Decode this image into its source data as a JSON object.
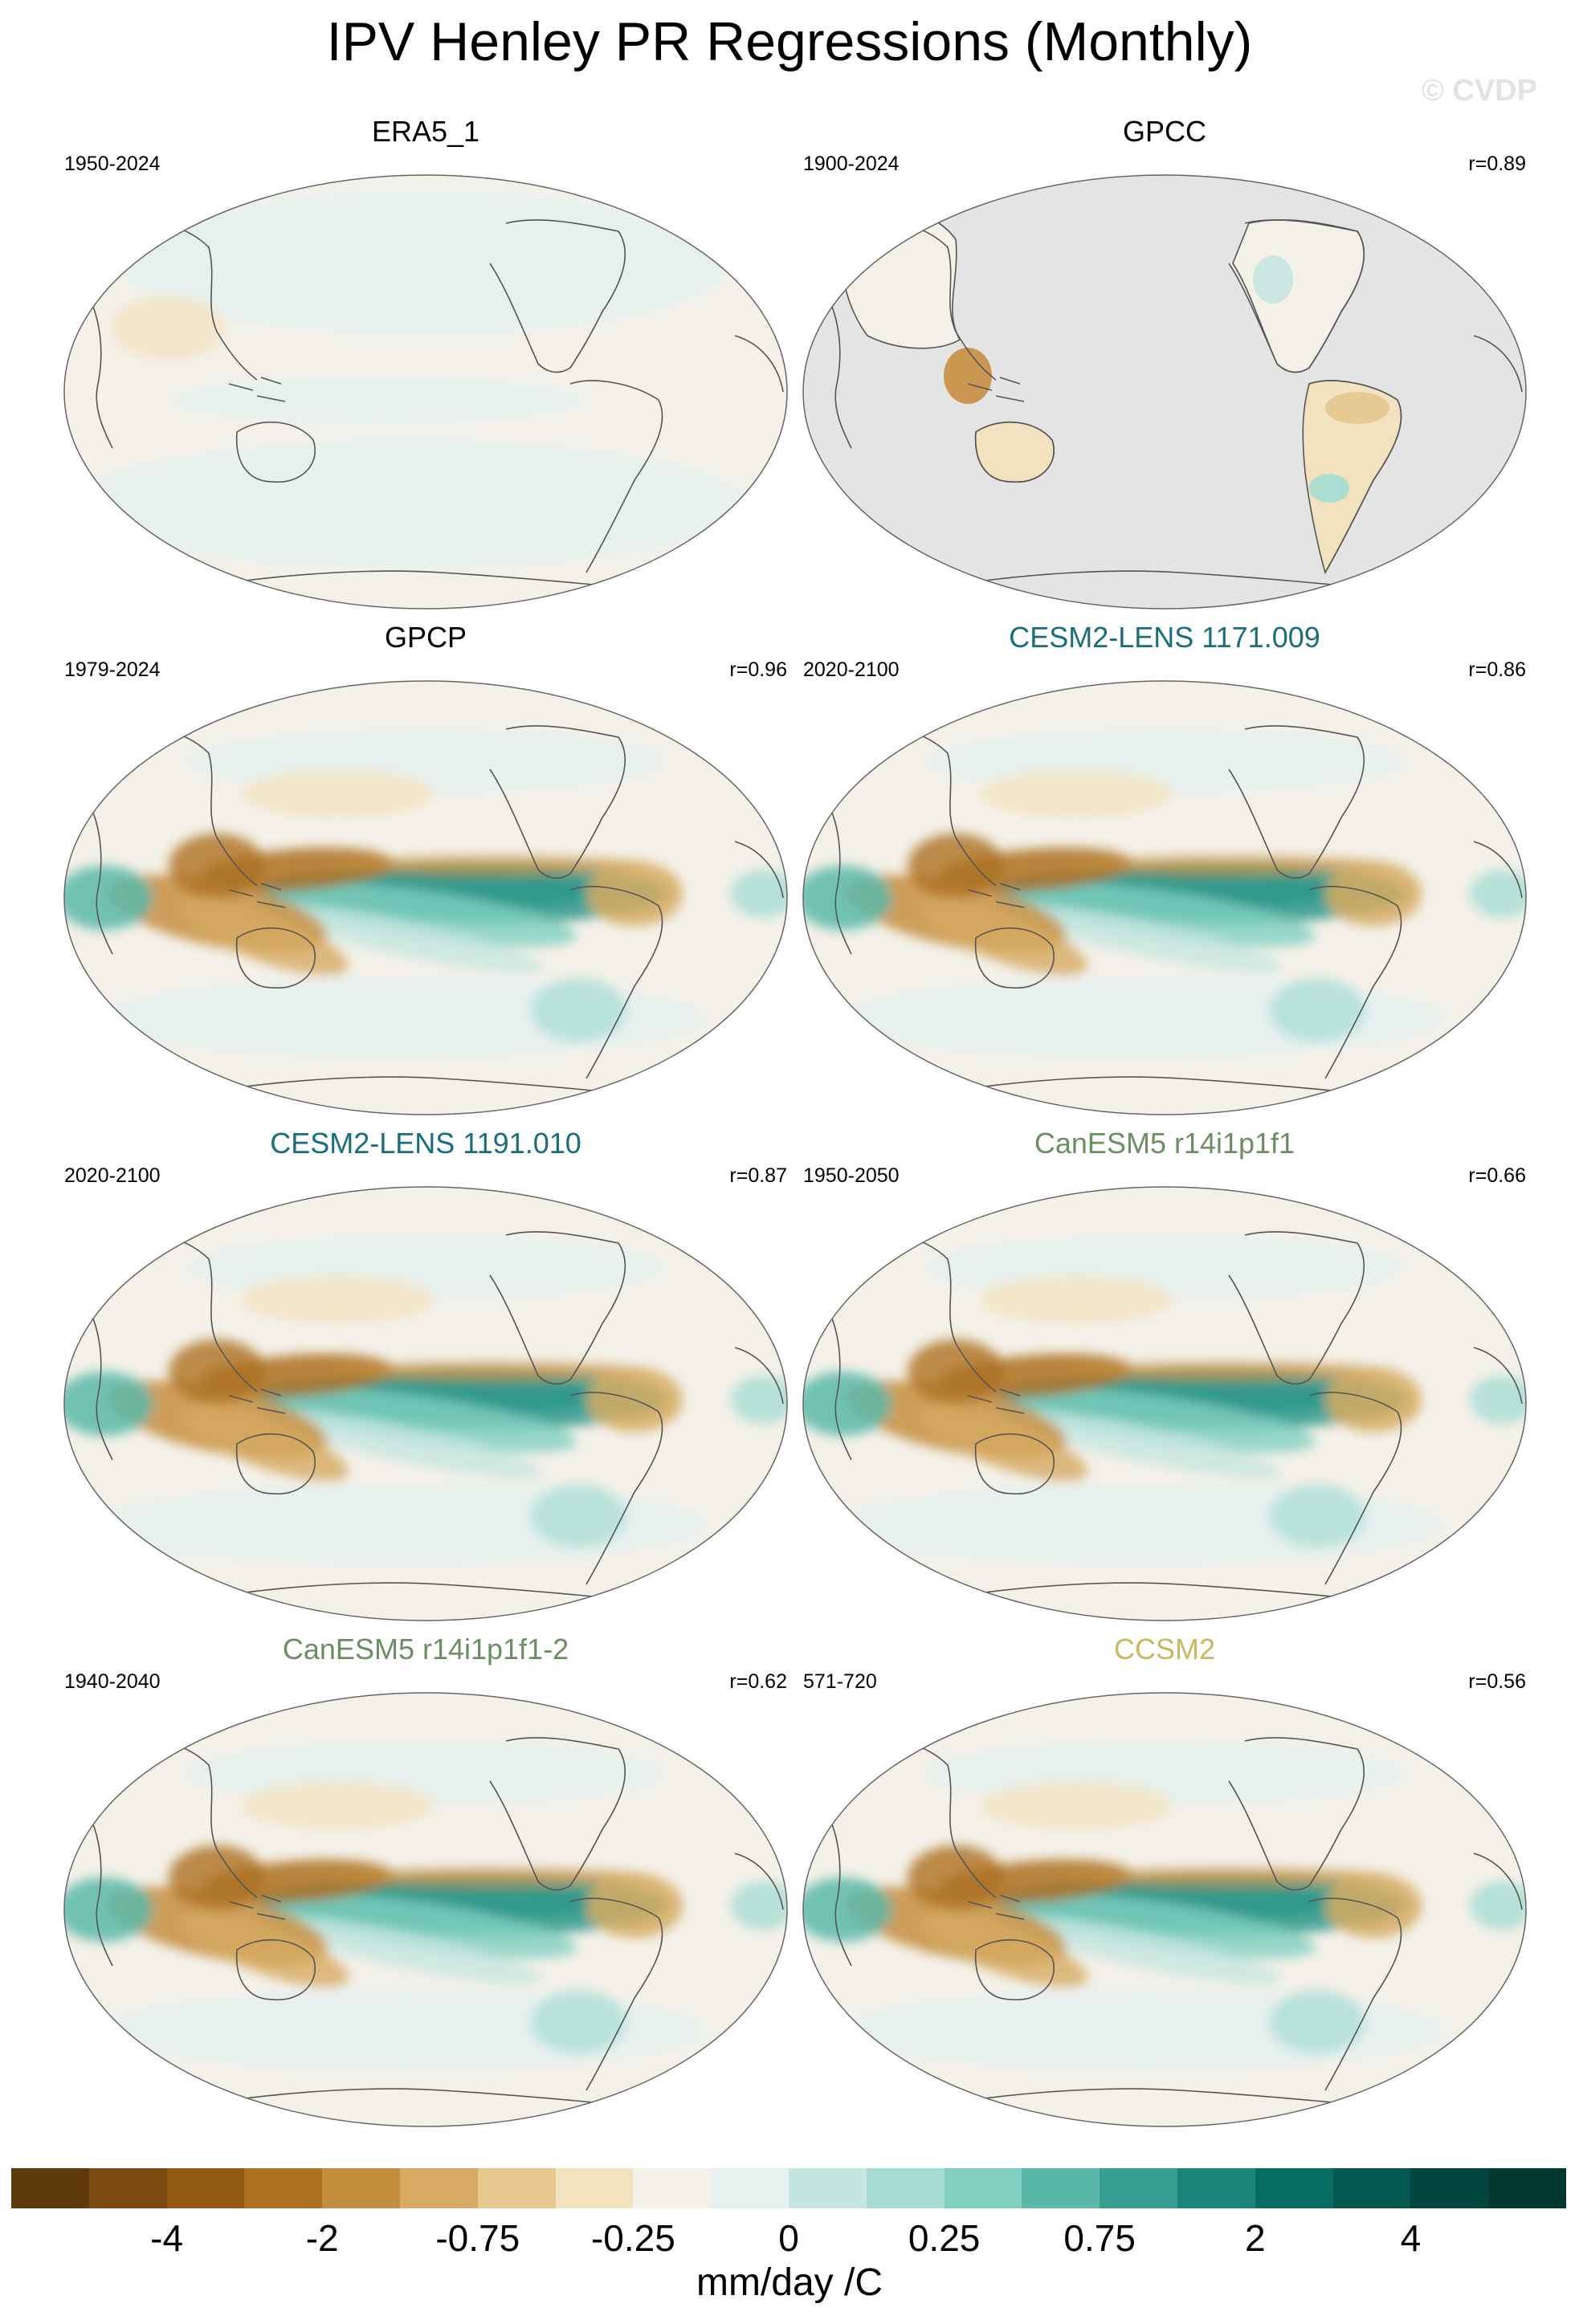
{
  "title": "IPV Henley PR Regressions (Monthly)",
  "watermark": "© CVDP",
  "colors": {
    "land_mask": "#e4e4e4",
    "obs_title": "#000000",
    "cesm_title": "#1a6d7d",
    "canesm_title": "#6b8f62",
    "ccsm_title": "#c8b862"
  },
  "panels": [
    {
      "id": "era5",
      "title": "ERA5_1",
      "years": "1950-2024",
      "corr": "",
      "style": "weak",
      "title_color": "#000000"
    },
    {
      "id": "gpcc",
      "title": "GPCC",
      "years": "1900-2024",
      "corr": "r=0.89",
      "style": "gpcc",
      "title_color": "#000000"
    },
    {
      "id": "gpcp",
      "title": "GPCP",
      "years": "1979-2024",
      "corr": "r=0.96",
      "style": "strong",
      "title_color": "#000000"
    },
    {
      "id": "cesm1",
      "title": "CESM2-LENS 1171.009",
      "years": "2020-2100",
      "corr": "r=0.86",
      "style": "strong",
      "title_color": "#1a6d7d"
    },
    {
      "id": "cesm2",
      "title": "CESM2-LENS 1191.010",
      "years": "2020-2100",
      "corr": "r=0.87",
      "style": "strong",
      "title_color": "#1a6d7d"
    },
    {
      "id": "canesm1",
      "title": "CanESM5 r14i1p1f1",
      "years": "1950-2050",
      "corr": "r=0.66",
      "style": "strong",
      "title_color": "#6b8f62"
    },
    {
      "id": "canesm2",
      "title": "CanESM5 r14i1p1f1-2",
      "years": "1940-2040",
      "corr": "r=0.62",
      "style": "strong",
      "title_color": "#6b8f62"
    },
    {
      "id": "ccsm2",
      "title": "CCSM2",
      "years": "571-720",
      "corr": "r=0.56",
      "style": "strong",
      "title_color": "#c8b862"
    }
  ],
  "colorbar": {
    "colors": [
      "#5e3a0c",
      "#7a4a10",
      "#945914",
      "#ad7020",
      "#c58e3e",
      "#d6aa62",
      "#e6c88e",
      "#f2e2c0",
      "#f4f1e9",
      "#e6f1ef",
      "#c5e6e0",
      "#a5dcd3",
      "#80cfc0",
      "#5ab8a9",
      "#389e91",
      "#1a857a",
      "#076c62",
      "#03584f",
      "#02473f",
      "#013830"
    ],
    "labels": [
      "-4",
      "-2",
      "-0.75",
      "-0.25",
      "0",
      "0.25",
      "0.75",
      "2",
      "4"
    ],
    "units": "mm/day /C"
  }
}
